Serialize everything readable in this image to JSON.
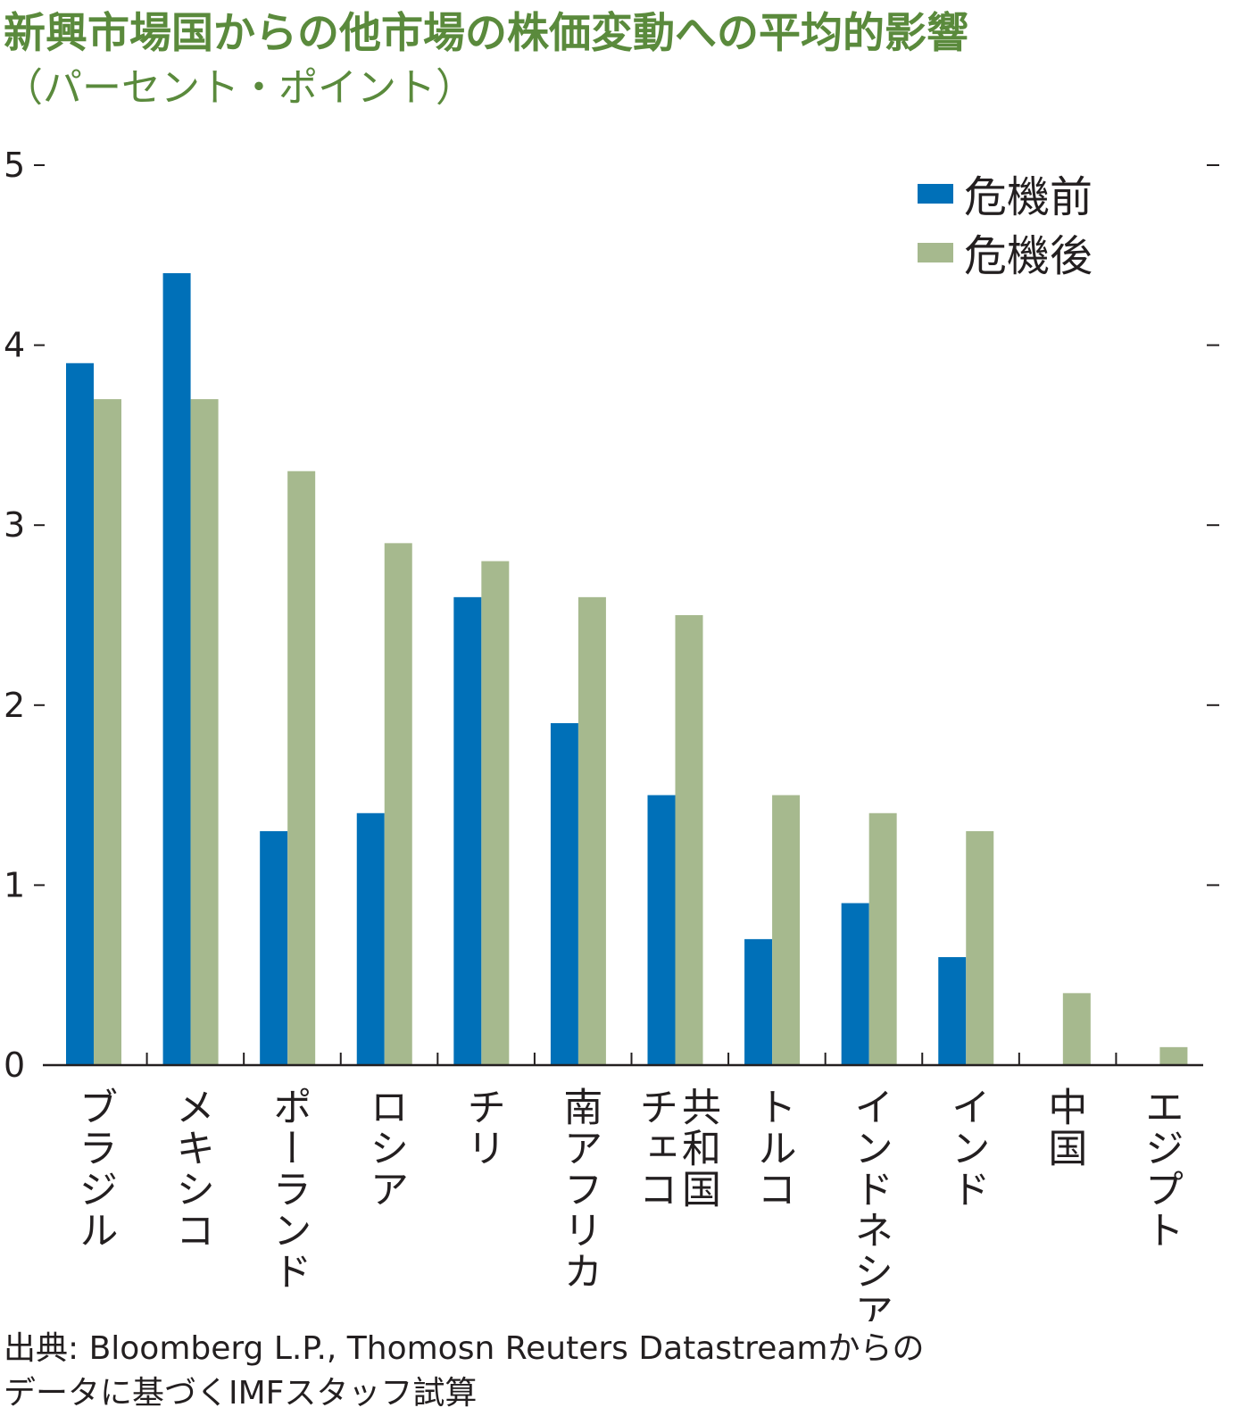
{
  "title": "新興市場国からの他市場の株価変動への平均的影響",
  "subtitle": "（パーセント・ポイント）",
  "source_lines": [
    "出典: Bloomberg L.P., Thomosn Reuters Datastreamからの",
    "データに基づくIMFスタッフ試算"
  ],
  "colors": {
    "title": "#5a8a3c",
    "before": "#0070b8",
    "after": "#a6b98e",
    "axis": "#231f20"
  },
  "chart_data": {
    "type": "bar",
    "categories": [
      [
        "ブラジル"
      ],
      [
        "メキシコ"
      ],
      [
        "ポーランド"
      ],
      [
        "ロシア"
      ],
      [
        "チリ"
      ],
      [
        "南アフリカ"
      ],
      [
        "チェコ",
        "共和国"
      ],
      [
        "トルコ"
      ],
      [
        "インドネシア"
      ],
      [
        "インド"
      ],
      [
        "中国"
      ],
      [
        "エジプト"
      ]
    ],
    "series": [
      {
        "name": "危機前",
        "color": "#0070b8",
        "values": [
          3.9,
          4.4,
          1.3,
          1.4,
          2.6,
          1.9,
          1.5,
          0.7,
          0.9,
          0.6,
          0,
          0
        ]
      },
      {
        "name": "危機後",
        "color": "#a6b98e",
        "values": [
          3.7,
          3.7,
          3.3,
          2.9,
          2.8,
          2.6,
          2.5,
          1.5,
          1.4,
          1.3,
          0.4,
          0.1
        ]
      }
    ],
    "ylim": [
      0,
      5
    ],
    "yticks": [
      "0",
      "1",
      "2",
      "3",
      "4",
      "5"
    ],
    "legend_position": "top-right",
    "xlabel": "",
    "ylabel": ""
  }
}
